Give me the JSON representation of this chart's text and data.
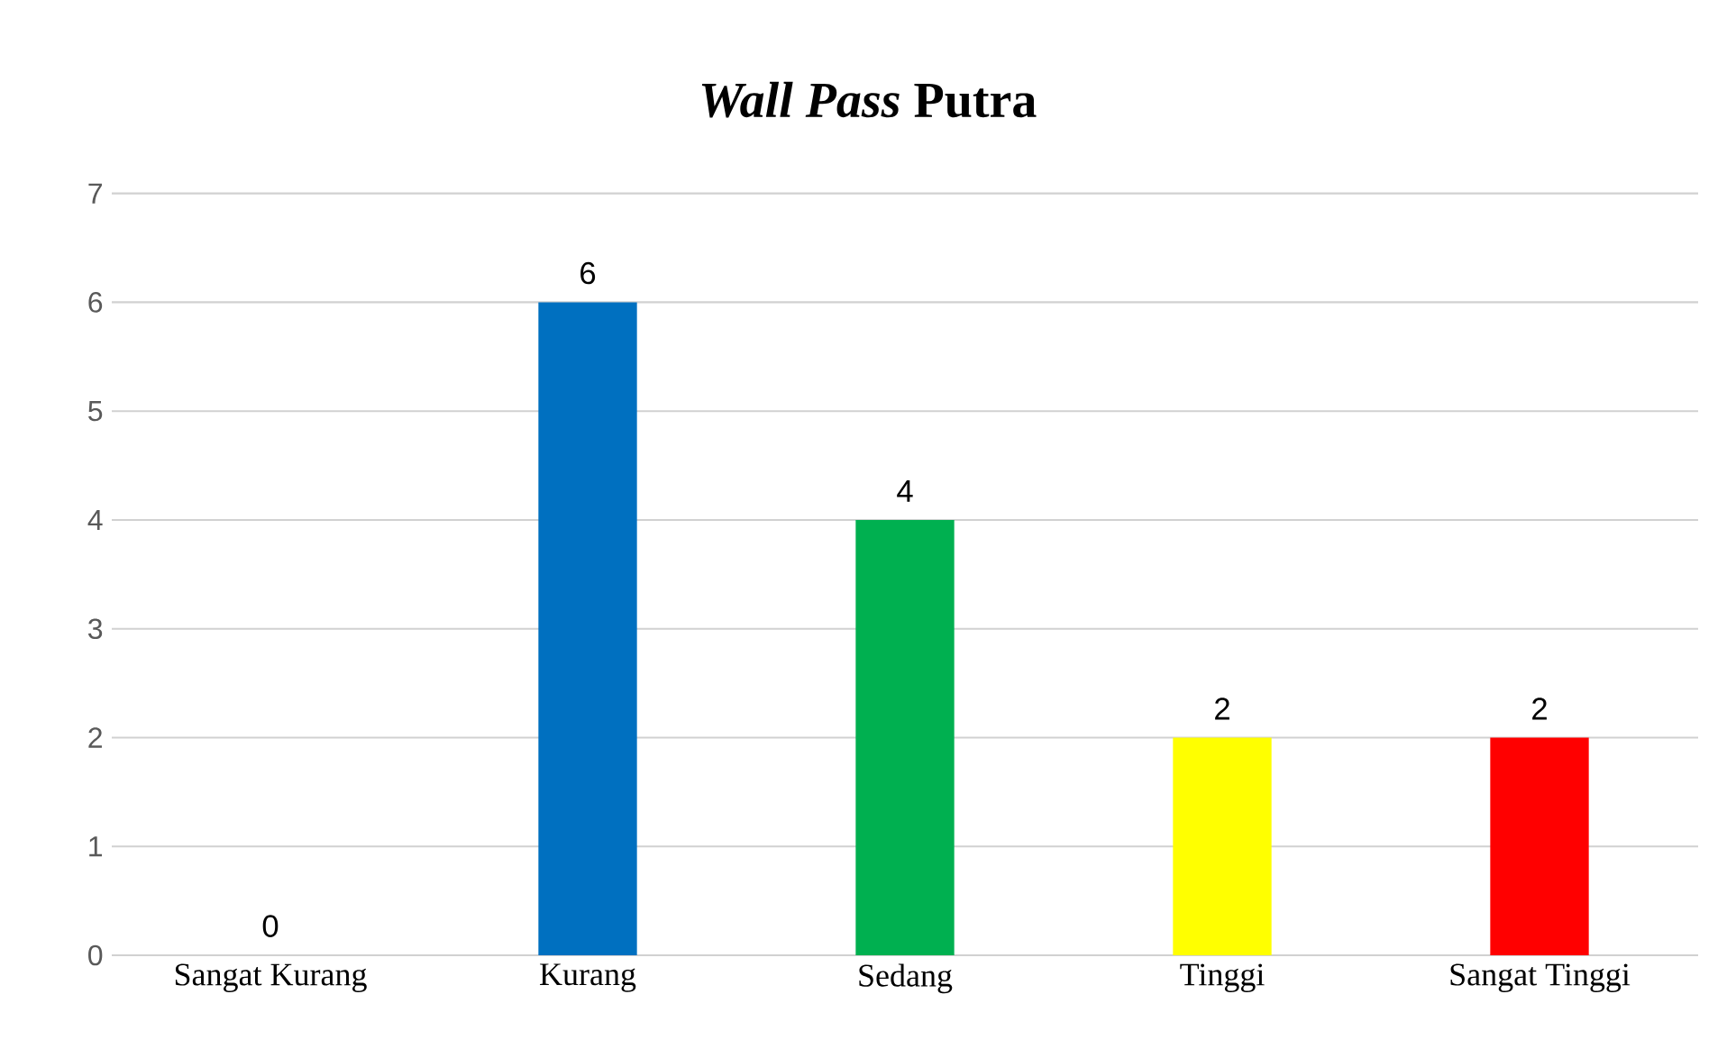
{
  "chart_data": {
    "type": "bar",
    "title": "*Wall Pass* Putra",
    "categories": [
      "Sangat Kurang",
      "Kurang",
      "Sedang",
      "Tinggi",
      "Sangat Tinggi"
    ],
    "values": [
      0,
      6,
      4,
      2,
      2
    ],
    "colors": [
      "#a5a5a5",
      "#0070c0",
      "#00b050",
      "#ffff00",
      "#ff0000"
    ],
    "ylim": [
      0,
      7
    ],
    "yticks": [
      0,
      1,
      2,
      3,
      4,
      5,
      6,
      7
    ],
    "grid": "y",
    "data_labels": true
  }
}
